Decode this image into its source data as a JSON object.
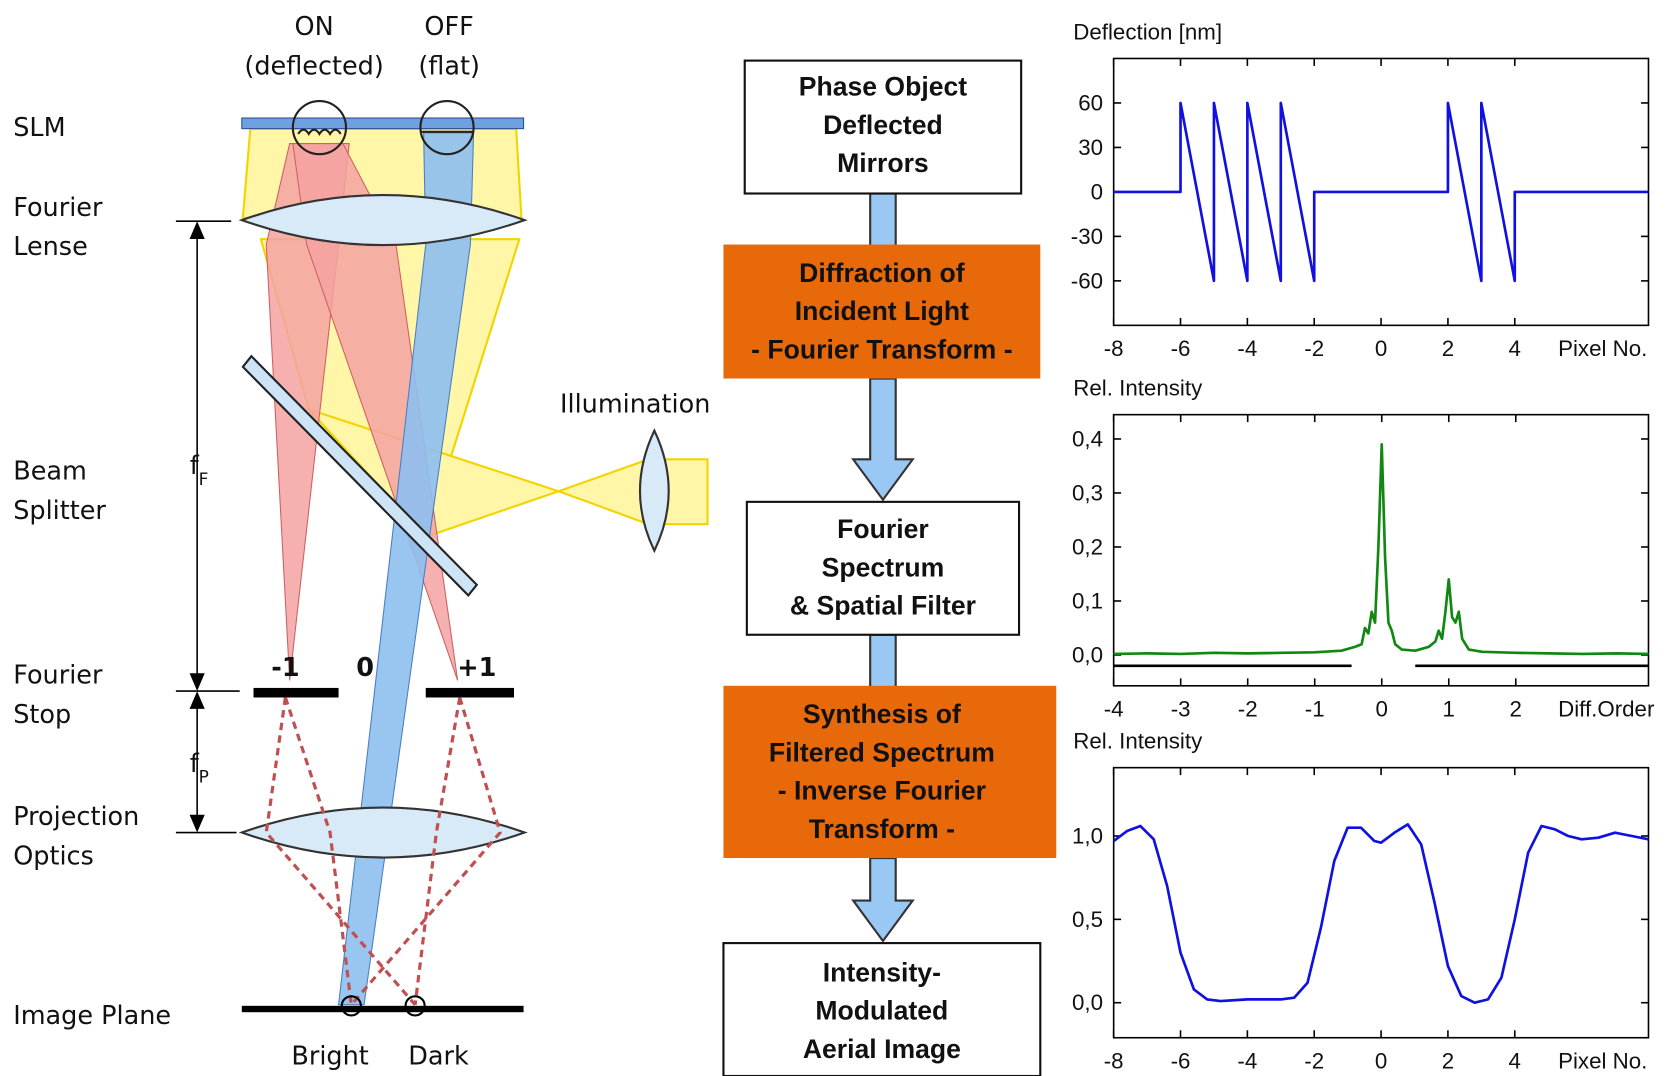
{
  "diagram": {
    "optics": {
      "components": [
        [
          "SLM"
        ],
        [
          "Fourier",
          "Lense"
        ],
        [
          "Beam",
          "Splitter"
        ],
        [
          "Fourier",
          "Stop"
        ],
        [
          "Projection",
          "Optics"
        ],
        [
          "Image Plane"
        ]
      ],
      "on": [
        "ON",
        "(deflected)"
      ],
      "off": [
        "OFF",
        "(flat)"
      ],
      "illumination": "Illumination",
      "focal_fourier": {
        "symbol": "f",
        "sub": "F"
      },
      "focal_projection": {
        "symbol": "f",
        "sub": "P"
      },
      "orders": [
        "-1",
        "0",
        "+1"
      ],
      "outputs": [
        "Bright",
        "Dark"
      ]
    },
    "flow": [
      [
        "Phase Object",
        "Deflected",
        "Mirrors"
      ],
      [
        "Diffraction of",
        "Incident Light",
        "- Fourier Transform -"
      ],
      [
        "Fourier",
        "Spectrum",
        "& Spatial Filter"
      ],
      [
        "Synthesis of",
        "Filtered Spectrum",
        "- Inverse Fourier",
        "Transform -"
      ],
      [
        "Intensity-",
        "Modulated",
        "Aerial Image"
      ]
    ]
  },
  "chart_data": [
    {
      "type": "line",
      "title": "Deflection [nm]",
      "xlabel": "Pixel No.",
      "xlim": [
        -8,
        8
      ],
      "xticks": [
        -8,
        -6,
        -4,
        -2,
        0,
        2,
        4
      ],
      "ylim": [
        -90,
        90
      ],
      "yticks": [
        -60,
        -30,
        0,
        30,
        60
      ],
      "series": [
        {
          "color": "#1010e0",
          "x": [
            -8,
            -6,
            -6,
            -5,
            -5,
            -4,
            -4,
            -3,
            -3,
            -2,
            -2,
            2,
            2,
            3,
            3,
            4,
            4,
            8
          ],
          "values": [
            0,
            0,
            60,
            -60,
            60,
            -60,
            60,
            -60,
            60,
            -60,
            0,
            0,
            60,
            -60,
            60,
            -60,
            0,
            0
          ]
        }
      ]
    },
    {
      "type": "line",
      "title": "Rel. Intensity",
      "xlabel": "Diff.Order",
      "xlim": [
        -4,
        3.98
      ],
      "xticks": [
        -4,
        -3,
        -2,
        -1,
        0,
        1,
        2
      ],
      "ylim": [
        -0.057,
        0.445
      ],
      "yticks": [
        {
          "value": 0,
          "label": "0,0"
        },
        {
          "value": 0.1,
          "label": "0,1"
        },
        {
          "value": 0.2,
          "label": "0,2"
        },
        {
          "value": 0.3,
          "label": "0,3"
        },
        {
          "value": 0.4,
          "label": "0,4"
        }
      ],
      "series": [
        {
          "color": "#118811",
          "x": [
            -4,
            -3.5,
            -3,
            -2.5,
            -2,
            -1.5,
            -1,
            -0.6,
            -0.4,
            -0.3,
            -0.25,
            -0.2,
            -0.15,
            -0.1,
            -0.05,
            0,
            0.05,
            0.1,
            0.15,
            0.2,
            0.3,
            0.5,
            0.7,
            0.8,
            0.85,
            0.9,
            0.95,
            1,
            1.05,
            1.1,
            1.15,
            1.2,
            1.3,
            1.5,
            2,
            2.5,
            3,
            3.5,
            3.98
          ],
          "values": [
            0.002,
            0.003,
            0.002,
            0.004,
            0.003,
            0.004,
            0.005,
            0.008,
            0.015,
            0.02,
            0.05,
            0.04,
            0.08,
            0.06,
            0.2,
            0.39,
            0.18,
            0.06,
            0.045,
            0.02,
            0.01,
            0.008,
            0.015,
            0.025,
            0.045,
            0.03,
            0.08,
            0.14,
            0.07,
            0.06,
            0.08,
            0.03,
            0.01,
            0.006,
            0.004,
            0.003,
            0.002,
            0.003,
            0.002
          ]
        },
        {
          "color": "#000000",
          "x": [
            -4,
            -0.45,
            0,
            0.5,
            3.98
          ],
          "values": [
            -0.02,
            -0.02,
            null,
            -0.02,
            -0.02
          ]
        }
      ]
    },
    {
      "type": "line",
      "title": "Rel. Intensity",
      "xlabel": "Pixel No.",
      "xlim": [
        -8,
        8
      ],
      "xticks": [
        -8,
        -6,
        -4,
        -2,
        0,
        2,
        4
      ],
      "ylim": [
        -0.21,
        1.41
      ],
      "yticks": [
        {
          "value": 0,
          "label": "0,0"
        },
        {
          "value": 0.5,
          "label": "0,5"
        },
        {
          "value": 1,
          "label": "1,0"
        }
      ],
      "series": [
        {
          "color": "#1010e0",
          "x": [
            -8,
            -7.6,
            -7.2,
            -6.8,
            -6.4,
            -6,
            -5.6,
            -5.2,
            -4.8,
            -4,
            -3,
            -2.6,
            -2.2,
            -1.8,
            -1.4,
            -1,
            -0.6,
            -0.2,
            0,
            0.4,
            0.8,
            1.2,
            1.6,
            2,
            2.4,
            2.8,
            3.2,
            3.6,
            4,
            4.4,
            4.8,
            5.2,
            5.6,
            6,
            6.5,
            7,
            7.5,
            8
          ],
          "values": [
            0.97,
            1.03,
            1.06,
            0.98,
            0.7,
            0.3,
            0.08,
            0.02,
            0.01,
            0.02,
            0.02,
            0.03,
            0.12,
            0.45,
            0.85,
            1.05,
            1.05,
            0.97,
            0.96,
            1.02,
            1.07,
            0.95,
            0.6,
            0.22,
            0.04,
            0,
            0.02,
            0.15,
            0.5,
            0.9,
            1.06,
            1.04,
            1.0,
            0.98,
            0.99,
            1.02,
            1.0,
            0.98
          ]
        }
      ]
    }
  ]
}
